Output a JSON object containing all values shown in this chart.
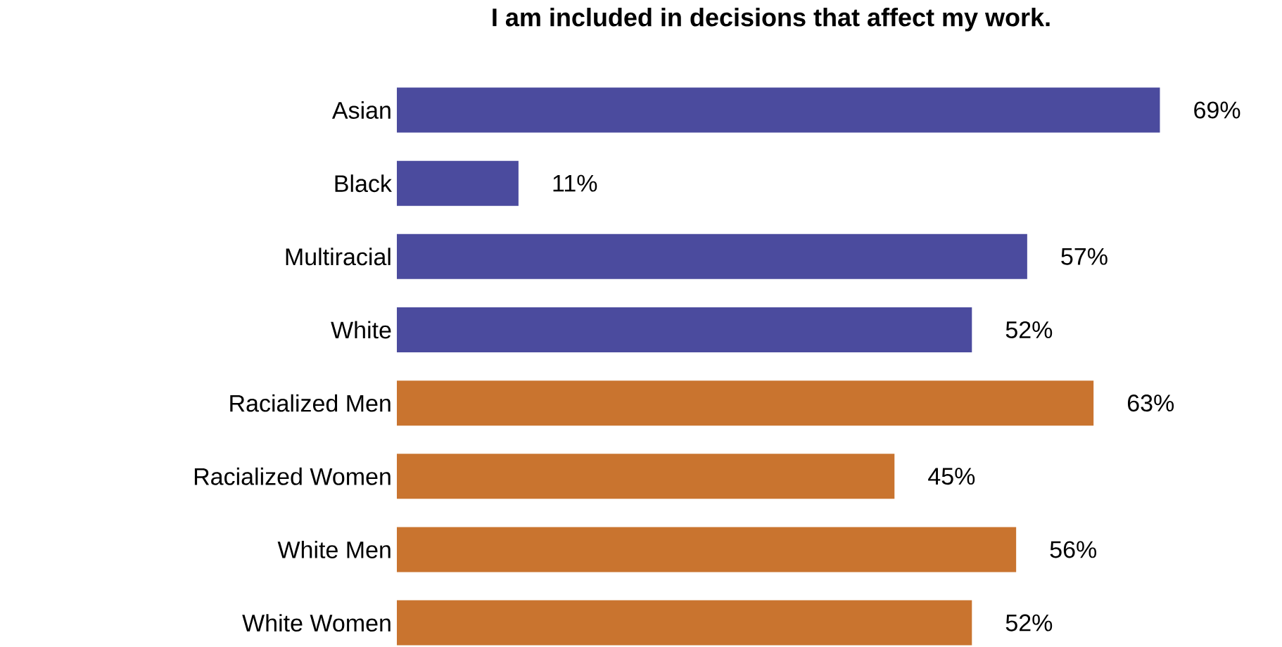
{
  "chart_data": {
    "type": "bar",
    "orientation": "horizontal",
    "title": "I am included in decisions that affect my work.",
    "categories": [
      "Asian",
      "Black",
      "Multiracial",
      "White",
      "Racialized Men",
      "Racialized Women",
      "White Men",
      "White Women"
    ],
    "values": [
      69,
      11,
      57,
      52,
      63,
      45,
      56,
      52
    ],
    "value_labels": [
      "69%",
      "11%",
      "57%",
      "52%",
      "63%",
      "45%",
      "56%",
      "52%"
    ],
    "colors": [
      "#4b4b9e",
      "#4b4b9e",
      "#4b4b9e",
      "#4b4b9e",
      "#c9742f",
      "#c9742f",
      "#c9742f",
      "#c9742f"
    ]
  }
}
